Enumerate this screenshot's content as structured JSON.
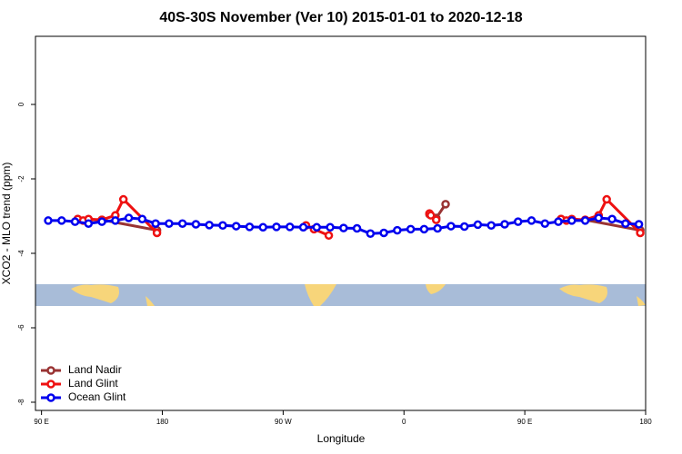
{
  "chart_data": {
    "type": "line",
    "title": "40S-30S November (Ver 10)   2015-01-01 to 2020-12-18",
    "x_label": "Longitude",
    "y_label": "XCO2 - MLO trend (ppm)",
    "xlim": [
      85.5,
      540
    ],
    "ylim": [
      -8.22,
      1.83
    ],
    "xticks": [
      {
        "value": 90,
        "label": "90 E"
      },
      180,
      {
        "value": 270,
        "label": "90 W"
      },
      {
        "value": 360,
        "label": "0"
      },
      {
        "value": 450,
        "label": "90 E"
      },
      {
        "value": 540,
        "label": "180"
      }
    ],
    "yticks": [
      0,
      -2,
      -4,
      -6,
      -8
    ],
    "legend": "bottom-left",
    "series": [
      {
        "name": "Land Nadir",
        "color": "#993333",
        "x": [
          117,
          125,
          135,
          176,
          null,
          379,
          384,
          391,
          null,
          477,
          485,
          495,
          536
        ],
        "values": [
          -3.08,
          -3.1,
          -3.1,
          -3.38,
          null,
          -2.95,
          -3.05,
          -2.68,
          null,
          -3.08,
          -3.1,
          -3.1,
          -3.38
        ]
      },
      {
        "name": "Land Glint",
        "color": "#ee1111",
        "x": [
          117,
          121,
          125,
          135,
          145,
          151,
          176,
          null,
          287,
          293,
          304,
          null,
          379,
          380,
          384,
          null,
          477,
          481,
          485,
          495,
          505,
          511,
          536
        ],
        "values": [
          -3.08,
          -3.12,
          -3.08,
          -3.1,
          -2.98,
          -2.55,
          -3.45,
          null,
          -3.25,
          -3.35,
          -3.52,
          null,
          -2.93,
          -2.98,
          -3.1,
          null,
          -3.08,
          -3.12,
          -3.08,
          -3.1,
          -2.98,
          -2.55,
          -3.45
        ]
      },
      {
        "name": "Ocean Glint",
        "color": "#0000ee",
        "x": [
          95,
          105,
          115,
          125,
          135,
          145,
          155,
          165,
          175,
          185,
          195,
          205,
          215,
          225,
          235,
          245,
          255,
          265,
          275,
          285,
          295,
          305,
          315,
          325,
          335,
          345,
          355,
          365,
          375,
          385,
          395,
          405,
          415,
          425,
          435,
          445,
          455,
          465,
          475,
          485,
          495,
          505,
          515,
          525,
          535
        ],
        "values": [
          -3.12,
          -3.12,
          -3.15,
          -3.2,
          -3.15,
          -3.12,
          -3.05,
          -3.08,
          -3.2,
          -3.2,
          -3.2,
          -3.22,
          -3.24,
          -3.25,
          -3.27,
          -3.29,
          -3.3,
          -3.29,
          -3.29,
          -3.3,
          -3.3,
          -3.3,
          -3.32,
          -3.33,
          -3.47,
          -3.45,
          -3.38,
          -3.35,
          -3.35,
          -3.33,
          -3.27,
          -3.28,
          -3.23,
          -3.25,
          -3.22,
          -3.15,
          -3.12,
          -3.2,
          -3.15,
          -3.12,
          -3.12,
          -3.05,
          -3.08,
          -3.2,
          -3.22
        ]
      }
    ]
  }
}
